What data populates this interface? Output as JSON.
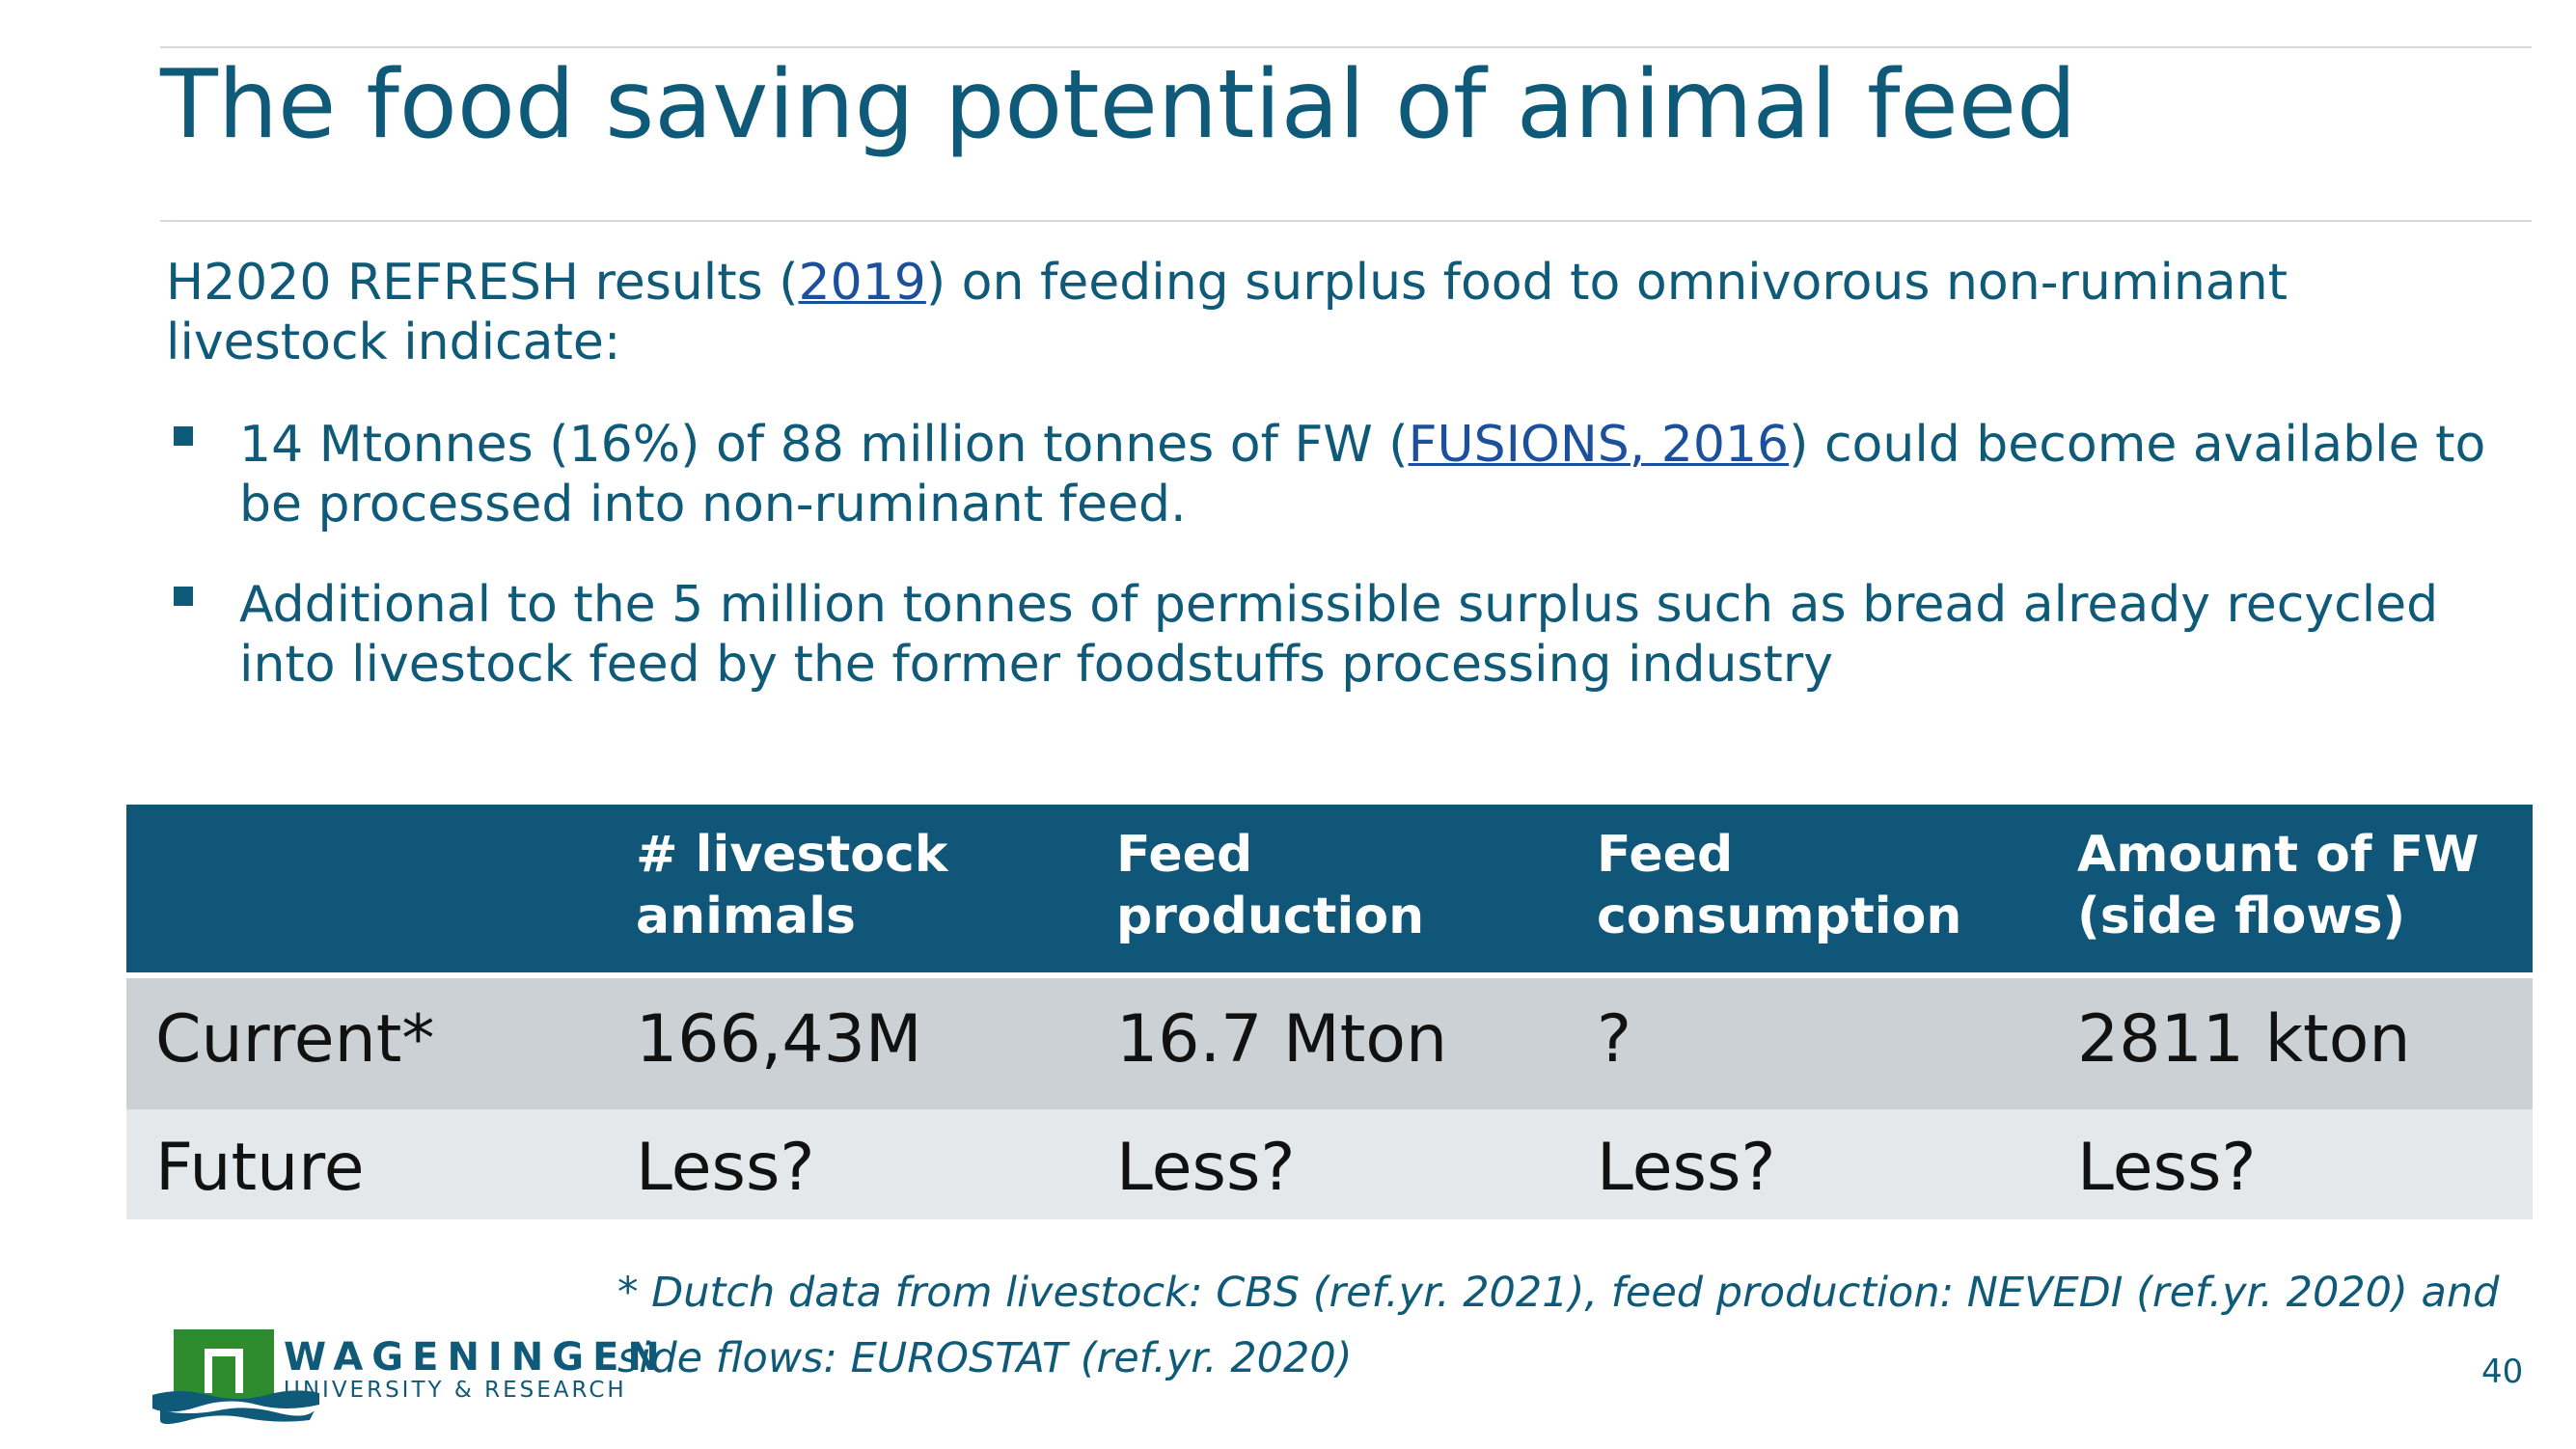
{
  "slide": {
    "title": "The food saving potential of animal feed",
    "intro_before": "H2020 REFRESH results (",
    "intro_link": "2019",
    "intro_after": ") on feeding surplus food to omnivorous non-ruminant livestock indicate:",
    "bullet1_before": "14 Mtonnes (16%) of 88 million tonnes of FW (",
    "bullet1_link": "FUSIONS, 2016",
    "bullet1_after": ") could become available to be processed into non-ruminant feed.",
    "bullet2": "Additional to the 5 million tonnes of permissible surplus such as bread already recycled into livestock feed by the former foodstuffs processing industry",
    "footnote": "* Dutch data from livestock: CBS (ref.yr. 2021), feed production: NEVEDI (ref.yr. 2020) and side flows: EUROSTAT (ref.yr. 2020)",
    "page_number": "40"
  },
  "table": {
    "headers": [
      "",
      "# livestock\nanimals",
      "Feed\nproduction",
      "Feed\nconsumption",
      "Amount of FW\n(side flows)"
    ],
    "rows": [
      [
        "Current*",
        "166,43M",
        "16.7 Mton",
        "?",
        "2811 kton"
      ],
      [
        "Future",
        "Less?",
        "Less?",
        "Less?",
        "Less?"
      ]
    ]
  },
  "logo": {
    "name": "WAGENINGEN",
    "subtitle": "UNIVERSITY & RESEARCH",
    "colors": {
      "green": "#2e8b2e",
      "blue": "#0f5a78"
    }
  },
  "colors": {
    "title": "#0f5a78",
    "header_bg": "#0f5678",
    "row1_bg": "#cbd1d5",
    "row2_bg": "#e5e8eb",
    "link": "#1c4f9c"
  }
}
